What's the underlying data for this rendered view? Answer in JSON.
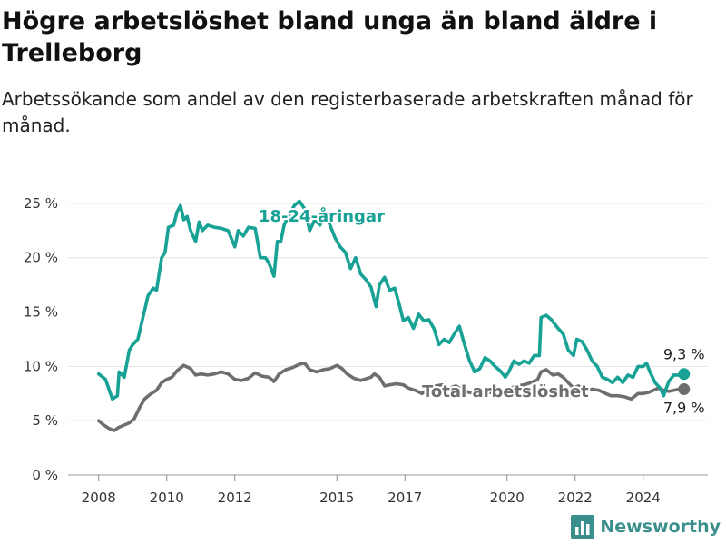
{
  "title": "Högre arbetslöshet bland unga än bland äldre i Trelleborg",
  "subtitle": "Arbetssökande som andel av den registerbaserade arbetskraften månad för månad.",
  "brand": {
    "name": "Newsworthy",
    "logo_icon": "bar-chart-logo-icon"
  },
  "chart_data": {
    "type": "line",
    "xlim": [
      2007.1,
      2025.9
    ],
    "ylim": [
      0,
      27
    ],
    "x_ticks": [
      2008,
      2010,
      2012,
      2015,
      2017,
      2020,
      2022,
      2024
    ],
    "y_ticks": [
      {
        "value": 0,
        "label": "0 %"
      },
      {
        "value": 5,
        "label": "5 %"
      },
      {
        "value": 10,
        "label": "10 %"
      },
      {
        "value": 15,
        "label": "15 %"
      },
      {
        "value": 20,
        "label": "20 %"
      },
      {
        "value": 25,
        "label": "25 %"
      }
    ],
    "grid": true,
    "series": [
      {
        "name": "18-24-åringar",
        "color": "#17a295",
        "last_label": "9,3 %",
        "points": [
          [
            2008.0,
            9.3
          ],
          [
            2008.2,
            8.8
          ],
          [
            2008.4,
            7.0
          ],
          [
            2008.55,
            7.3
          ],
          [
            2008.6,
            9.5
          ],
          [
            2008.75,
            9.0
          ],
          [
            2008.9,
            11.5
          ],
          [
            2009.0,
            12.0
          ],
          [
            2009.15,
            12.5
          ],
          [
            2009.3,
            14.5
          ],
          [
            2009.45,
            16.5
          ],
          [
            2009.6,
            17.2
          ],
          [
            2009.7,
            17.0
          ],
          [
            2009.85,
            20.0
          ],
          [
            2009.95,
            20.5
          ],
          [
            2010.05,
            22.8
          ],
          [
            2010.2,
            23.0
          ],
          [
            2010.3,
            24.2
          ],
          [
            2010.4,
            24.8
          ],
          [
            2010.5,
            23.5
          ],
          [
            2010.6,
            23.8
          ],
          [
            2010.7,
            22.5
          ],
          [
            2010.85,
            21.5
          ],
          [
            2010.95,
            23.3
          ],
          [
            2011.05,
            22.5
          ],
          [
            2011.2,
            23.0
          ],
          [
            2011.4,
            22.8
          ],
          [
            2011.6,
            22.7
          ],
          [
            2011.8,
            22.5
          ],
          [
            2012.0,
            21.0
          ],
          [
            2012.1,
            22.5
          ],
          [
            2012.25,
            22.0
          ],
          [
            2012.4,
            22.8
          ],
          [
            2012.6,
            22.7
          ],
          [
            2012.75,
            20.0
          ],
          [
            2012.9,
            20.0
          ],
          [
            2013.0,
            19.5
          ],
          [
            2013.15,
            18.3
          ],
          [
            2013.25,
            21.5
          ],
          [
            2013.35,
            21.5
          ],
          [
            2013.45,
            23.0
          ],
          [
            2013.6,
            24.0
          ],
          [
            2013.75,
            24.8
          ],
          [
            2013.9,
            25.2
          ],
          [
            2014.05,
            24.5
          ],
          [
            2014.2,
            22.5
          ],
          [
            2014.35,
            23.5
          ],
          [
            2014.5,
            23.0
          ],
          [
            2014.65,
            24.0
          ],
          [
            2014.8,
            23.0
          ],
          [
            2014.95,
            21.8
          ],
          [
            2015.1,
            21.0
          ],
          [
            2015.25,
            20.5
          ],
          [
            2015.4,
            19.0
          ],
          [
            2015.55,
            20.0
          ],
          [
            2015.7,
            18.5
          ],
          [
            2015.85,
            18.0
          ],
          [
            2016.0,
            17.3
          ],
          [
            2016.15,
            15.5
          ],
          [
            2016.25,
            17.5
          ],
          [
            2016.4,
            18.2
          ],
          [
            2016.55,
            17.0
          ],
          [
            2016.7,
            17.2
          ],
          [
            2016.85,
            15.5
          ],
          [
            2016.95,
            14.2
          ],
          [
            2017.1,
            14.5
          ],
          [
            2017.25,
            13.5
          ],
          [
            2017.4,
            14.8
          ],
          [
            2017.55,
            14.2
          ],
          [
            2017.7,
            14.3
          ],
          [
            2017.85,
            13.5
          ],
          [
            2018.0,
            12.0
          ],
          [
            2018.15,
            12.5
          ],
          [
            2018.3,
            12.2
          ],
          [
            2018.45,
            13.0
          ],
          [
            2018.6,
            13.7
          ],
          [
            2018.75,
            12.0
          ],
          [
            2018.9,
            10.5
          ],
          [
            2019.05,
            9.5
          ],
          [
            2019.2,
            9.8
          ],
          [
            2019.35,
            10.8
          ],
          [
            2019.5,
            10.5
          ],
          [
            2019.65,
            10.0
          ],
          [
            2019.8,
            9.6
          ],
          [
            2019.95,
            9.0
          ],
          [
            2020.05,
            9.5
          ],
          [
            2020.2,
            10.5
          ],
          [
            2020.35,
            10.2
          ],
          [
            2020.5,
            10.5
          ],
          [
            2020.65,
            10.3
          ],
          [
            2020.8,
            11.0
          ],
          [
            2020.95,
            11.0
          ],
          [
            2021.0,
            14.5
          ],
          [
            2021.15,
            14.7
          ],
          [
            2021.3,
            14.3
          ],
          [
            2021.5,
            13.5
          ],
          [
            2021.65,
            13.0
          ],
          [
            2021.8,
            11.5
          ],
          [
            2021.95,
            11.0
          ],
          [
            2022.05,
            12.5
          ],
          [
            2022.2,
            12.3
          ],
          [
            2022.35,
            11.5
          ],
          [
            2022.5,
            10.5
          ],
          [
            2022.65,
            10.0
          ],
          [
            2022.8,
            9.0
          ],
          [
            2022.95,
            8.8
          ],
          [
            2023.1,
            8.5
          ],
          [
            2023.25,
            9.0
          ],
          [
            2023.4,
            8.5
          ],
          [
            2023.55,
            9.2
          ],
          [
            2023.7,
            9.0
          ],
          [
            2023.85,
            10.0
          ],
          [
            2024.0,
            10.0
          ],
          [
            2024.1,
            10.3
          ],
          [
            2024.2,
            9.5
          ],
          [
            2024.35,
            8.5
          ],
          [
            2024.5,
            8.0
          ],
          [
            2024.6,
            7.3
          ],
          [
            2024.75,
            8.6
          ],
          [
            2024.9,
            9.2
          ],
          [
            2025.05,
            9.2
          ],
          [
            2025.2,
            9.3
          ]
        ]
      },
      {
        "name": "Total arbetslöshet",
        "color": "#6e6e6e",
        "last_label": "7,9 %",
        "points": [
          [
            2008.0,
            5.0
          ],
          [
            2008.15,
            4.6
          ],
          [
            2008.3,
            4.3
          ],
          [
            2008.45,
            4.1
          ],
          [
            2008.6,
            4.4
          ],
          [
            2008.75,
            4.6
          ],
          [
            2008.9,
            4.8
          ],
          [
            2009.05,
            5.2
          ],
          [
            2009.2,
            6.2
          ],
          [
            2009.35,
            7.0
          ],
          [
            2009.5,
            7.4
          ],
          [
            2009.7,
            7.8
          ],
          [
            2009.85,
            8.5
          ],
          [
            2010.0,
            8.8
          ],
          [
            2010.15,
            9.0
          ],
          [
            2010.3,
            9.6
          ],
          [
            2010.5,
            10.1
          ],
          [
            2010.7,
            9.8
          ],
          [
            2010.85,
            9.2
          ],
          [
            2011.0,
            9.3
          ],
          [
            2011.2,
            9.2
          ],
          [
            2011.4,
            9.3
          ],
          [
            2011.6,
            9.5
          ],
          [
            2011.8,
            9.3
          ],
          [
            2012.0,
            8.8
          ],
          [
            2012.2,
            8.7
          ],
          [
            2012.4,
            8.9
          ],
          [
            2012.6,
            9.4
          ],
          [
            2012.8,
            9.1
          ],
          [
            2013.0,
            9.0
          ],
          [
            2013.15,
            8.6
          ],
          [
            2013.3,
            9.3
          ],
          [
            2013.5,
            9.7
          ],
          [
            2013.7,
            9.9
          ],
          [
            2013.9,
            10.2
          ],
          [
            2014.05,
            10.3
          ],
          [
            2014.2,
            9.7
          ],
          [
            2014.4,
            9.5
          ],
          [
            2014.6,
            9.7
          ],
          [
            2014.8,
            9.8
          ],
          [
            2015.0,
            10.1
          ],
          [
            2015.15,
            9.8
          ],
          [
            2015.3,
            9.3
          ],
          [
            2015.5,
            8.9
          ],
          [
            2015.7,
            8.7
          ],
          [
            2015.9,
            8.9
          ],
          [
            2016.0,
            9.0
          ],
          [
            2016.1,
            9.3
          ],
          [
            2016.25,
            9.0
          ],
          [
            2016.4,
            8.2
          ],
          [
            2016.55,
            8.3
          ],
          [
            2016.75,
            8.4
          ],
          [
            2016.95,
            8.3
          ],
          [
            2017.1,
            8.0
          ],
          [
            2017.3,
            7.8
          ],
          [
            2017.5,
            7.5
          ],
          [
            2017.7,
            8.0
          ],
          [
            2017.9,
            8.2
          ],
          [
            2018.1,
            8.3
          ],
          [
            2018.3,
            8.0
          ],
          [
            2018.5,
            8.2
          ],
          [
            2018.7,
            7.8
          ],
          [
            2018.9,
            7.6
          ],
          [
            2019.1,
            7.5
          ],
          [
            2019.3,
            7.7
          ],
          [
            2019.5,
            7.6
          ],
          [
            2019.7,
            7.5
          ],
          [
            2019.9,
            7.6
          ],
          [
            2020.1,
            8.0
          ],
          [
            2020.3,
            8.2
          ],
          [
            2020.5,
            8.3
          ],
          [
            2020.7,
            8.5
          ],
          [
            2020.9,
            8.8
          ],
          [
            2021.0,
            9.5
          ],
          [
            2021.15,
            9.7
          ],
          [
            2021.35,
            9.2
          ],
          [
            2021.5,
            9.3
          ],
          [
            2021.65,
            9.0
          ],
          [
            2021.8,
            8.5
          ],
          [
            2021.95,
            8.0
          ],
          [
            2022.1,
            8.2
          ],
          [
            2022.3,
            7.8
          ],
          [
            2022.5,
            7.9
          ],
          [
            2022.7,
            7.8
          ],
          [
            2022.9,
            7.5
          ],
          [
            2023.05,
            7.3
          ],
          [
            2023.25,
            7.3
          ],
          [
            2023.45,
            7.2
          ],
          [
            2023.65,
            7.0
          ],
          [
            2023.85,
            7.5
          ],
          [
            2024.0,
            7.5
          ],
          [
            2024.15,
            7.6
          ],
          [
            2024.3,
            7.8
          ],
          [
            2024.45,
            8.0
          ],
          [
            2024.6,
            7.8
          ],
          [
            2024.75,
            7.7
          ],
          [
            2024.9,
            7.8
          ],
          [
            2025.05,
            7.9
          ],
          [
            2025.2,
            7.9
          ]
        ]
      }
    ]
  }
}
